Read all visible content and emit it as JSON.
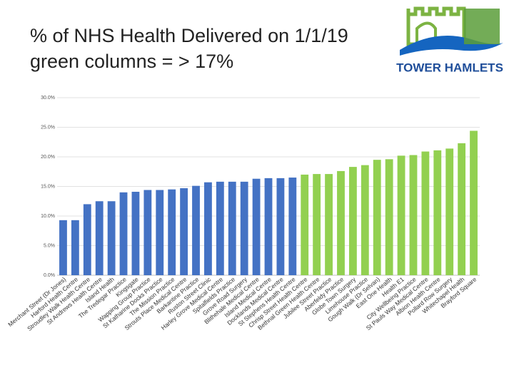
{
  "logo": "TOWER HAMLETS",
  "chart_data": {
    "type": "bar",
    "title": "% of NHS Health Delivered on 1/1/19",
    "subtitle": "green columns = > 17%",
    "categories": [
      "Merchant Street (Dr Jones)",
      "Harford Health Centre",
      "Stroudley Walk Health Centre",
      "St Andrews Health Centre",
      "Island Health",
      "The Tredegar Practice",
      "Kingsgate",
      "Wapping Group Practice",
      "St Katharine Docks Practice",
      "The Mission Practice",
      "Strouts Place Medical Centre",
      "Barkantine Practice",
      "Ruston Street Clinic",
      "Harley Grove Medical Centre",
      "Spitalfields Practice",
      "Grove Road Surgery",
      "Blithehale Medical Centre",
      "Island Medical Centre",
      "Docklands Medical Centre",
      "St Stephens Health Centre",
      "Chrisp Street Health Centre",
      "Bethnal Green Health Centre",
      "Jubilee Street Practice",
      "Aberfeldy Practice",
      "Globe Town Surgery",
      "Limehouse Practice",
      "Gough Walk (Dr Selvan)",
      "East One Health",
      "Health E1",
      "City Wellbeing Practice",
      "St Pauls Way Medical Centre",
      "Albion Health Centre",
      "Pollard Row Surgery",
      "Whitechapel Health",
      "Brayford Square"
    ],
    "values": [
      9.3,
      9.3,
      12.0,
      12.5,
      12.5,
      14.0,
      14.1,
      14.4,
      14.4,
      14.5,
      14.7,
      15.1,
      15.7,
      15.8,
      15.8,
      15.8,
      16.3,
      16.4,
      16.4,
      16.5,
      17.0,
      17.1,
      17.1,
      17.6,
      18.3,
      18.6,
      19.5,
      19.6,
      20.2,
      20.3,
      20.9,
      21.1,
      21.4,
      22.3,
      24.4
    ],
    "colors": [
      "#4472c4",
      "#4472c4",
      "#4472c4",
      "#4472c4",
      "#4472c4",
      "#4472c4",
      "#4472c4",
      "#4472c4",
      "#4472c4",
      "#4472c4",
      "#4472c4",
      "#4472c4",
      "#4472c4",
      "#4472c4",
      "#4472c4",
      "#4472c4",
      "#4472c4",
      "#4472c4",
      "#4472c4",
      "#4472c4",
      "#92d050",
      "#92d050",
      "#92d050",
      "#92d050",
      "#92d050",
      "#92d050",
      "#92d050",
      "#92d050",
      "#92d050",
      "#92d050",
      "#92d050",
      "#92d050",
      "#92d050",
      "#92d050",
      "#92d050"
    ],
    "ylim": [
      0,
      30
    ],
    "yticks": [
      {
        "value": 0,
        "label": "0.0%"
      },
      {
        "value": 5,
        "label": "5.0%"
      },
      {
        "value": 10,
        "label": "10.0%"
      },
      {
        "value": 15,
        "label": "15.0%"
      },
      {
        "value": 20,
        "label": "20.0%"
      },
      {
        "value": 25,
        "label": "25.0%"
      },
      {
        "value": 30,
        "label": "30.0%"
      }
    ],
    "grid": true
  }
}
